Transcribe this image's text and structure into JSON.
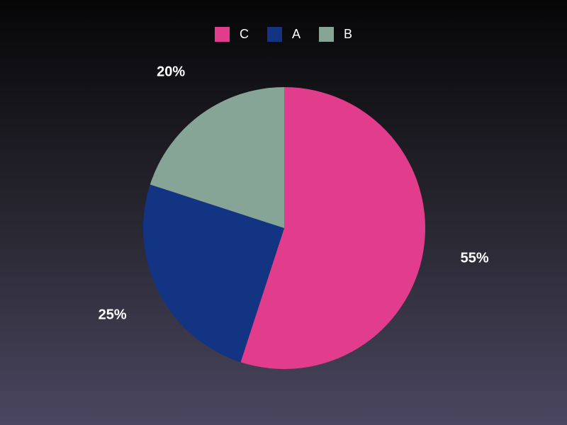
{
  "chart_data": {
    "type": "pie",
    "title": "",
    "legend_position": "top",
    "slices": [
      {
        "label": "C",
        "value": 55,
        "pct_label": "55%",
        "color": "#e23d8c"
      },
      {
        "label": "A",
        "value": 25,
        "pct_label": "25%",
        "color": "#133383"
      },
      {
        "label": "B",
        "value": 20,
        "pct_label": "20%",
        "color": "#87a597"
      }
    ]
  }
}
